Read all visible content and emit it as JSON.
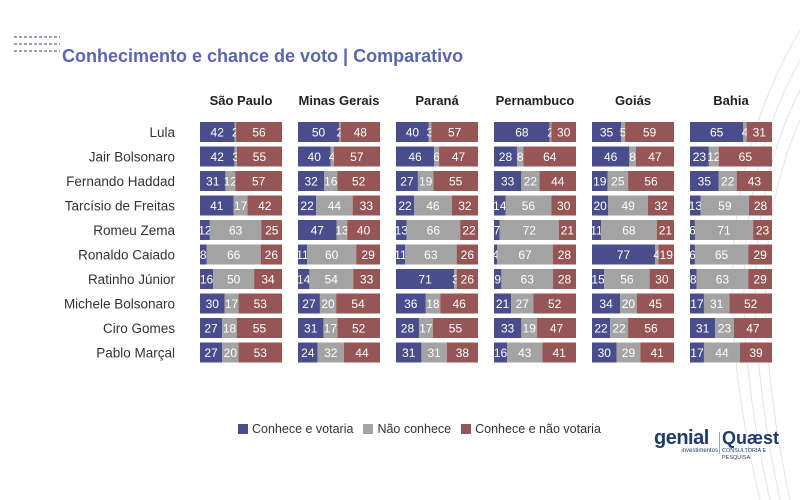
{
  "title": "Conhecimento e chance de voto | Comparativo",
  "colors": {
    "conhece_votaria": "#4a4d8c",
    "nao_conhece": "#a3a3a3",
    "conhece_nao_votaria": "#975656",
    "title": "#5b64ae"
  },
  "legend": [
    {
      "label": "Conhece e votaria",
      "color": "#4a4d8c"
    },
    {
      "label": "Não conhece",
      "color": "#a3a3a3"
    },
    {
      "label": "Conhece e não votaria",
      "color": "#975656"
    }
  ],
  "logos": {
    "genial": "genial",
    "genial_sub": "investimentos",
    "quaest": "Quæst",
    "quaest_sub": "CONSULTORIA E PESQUISA"
  },
  "chart_data": {
    "type": "bar",
    "stacked": true,
    "orientation": "horizontal",
    "candidates": [
      "Lula",
      "Jair Bolsonaro",
      "Fernando Haddad",
      "Tarcísio de Freitas",
      "Romeu Zema",
      "Ronaldo Caiado",
      "Ratinho Júnior",
      "Michele Bolsonaro",
      "Ciro Gomes",
      "Pablo Marçal"
    ],
    "states": [
      {
        "name": "São Paulo",
        "values": [
          [
            42,
            2,
            56
          ],
          [
            42,
            3,
            55
          ],
          [
            31,
            12,
            57
          ],
          [
            41,
            17,
            42
          ],
          [
            12,
            63,
            25
          ],
          [
            8,
            66,
            26
          ],
          [
            16,
            50,
            34
          ],
          [
            30,
            17,
            53
          ],
          [
            27,
            18,
            55
          ],
          [
            27,
            20,
            53
          ]
        ]
      },
      {
        "name": "Minas Gerais",
        "values": [
          [
            50,
            2,
            48
          ],
          [
            40,
            4,
            57
          ],
          [
            32,
            16,
            52
          ],
          [
            22,
            44,
            33
          ],
          [
            47,
            13,
            40
          ],
          [
            11,
            60,
            29
          ],
          [
            14,
            54,
            33
          ],
          [
            27,
            20,
            54
          ],
          [
            31,
            17,
            52
          ],
          [
            24,
            32,
            44
          ]
        ]
      },
      {
        "name": "Paraná",
        "values": [
          [
            40,
            3,
            57
          ],
          [
            46,
            6,
            47
          ],
          [
            27,
            19,
            55
          ],
          [
            22,
            46,
            32
          ],
          [
            13,
            66,
            22
          ],
          [
            11,
            63,
            26
          ],
          [
            71,
            3,
            26
          ],
          [
            36,
            18,
            46
          ],
          [
            28,
            17,
            55
          ],
          [
            31,
            31,
            38
          ]
        ]
      },
      {
        "name": "Pernambuco",
        "values": [
          [
            68,
            2,
            30
          ],
          [
            28,
            8,
            64
          ],
          [
            33,
            22,
            44
          ],
          [
            14,
            56,
            30
          ],
          [
            7,
            72,
            21
          ],
          [
            4,
            67,
            28
          ],
          [
            9,
            63,
            28
          ],
          [
            21,
            27,
            52
          ],
          [
            33,
            19,
            47
          ],
          [
            16,
            43,
            41
          ]
        ]
      },
      {
        "name": "Goiás",
        "values": [
          [
            35,
            5,
            59
          ],
          [
            46,
            8,
            47
          ],
          [
            19,
            25,
            56
          ],
          [
            20,
            49,
            32
          ],
          [
            11,
            68,
            21
          ],
          [
            77,
            4,
            19
          ],
          [
            15,
            56,
            30
          ],
          [
            34,
            20,
            45
          ],
          [
            22,
            22,
            56
          ],
          [
            30,
            29,
            41
          ]
        ]
      },
      {
        "name": "Bahia",
        "values": [
          [
            65,
            4,
            31
          ],
          [
            23,
            12,
            65
          ],
          [
            35,
            22,
            43
          ],
          [
            13,
            59,
            28
          ],
          [
            6,
            71,
            23
          ],
          [
            6,
            65,
            29
          ],
          [
            8,
            63,
            29
          ],
          [
            17,
            31,
            52
          ],
          [
            31,
            23,
            47
          ],
          [
            17,
            44,
            39
          ]
        ]
      }
    ],
    "series": [
      "Conhece e votaria",
      "Não conhece",
      "Conhece e não votaria"
    ],
    "xlim": [
      0,
      100
    ]
  }
}
